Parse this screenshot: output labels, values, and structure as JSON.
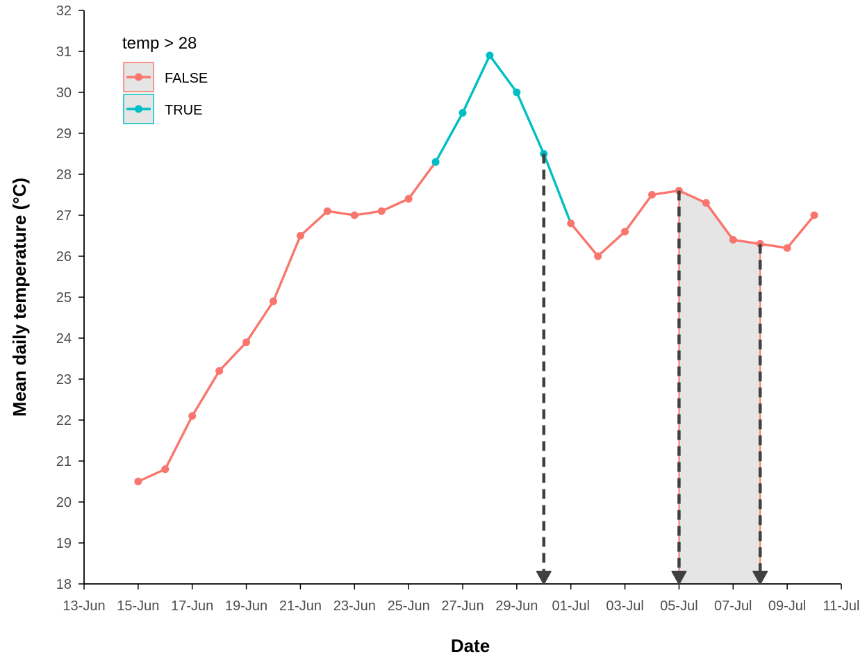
{
  "chart_data": {
    "type": "line",
    "xlabel": "Date",
    "ylabel": "Mean daily temperature (°C)",
    "ylim": [
      18,
      32
    ],
    "xlim": [
      "2021-06-13",
      "2021-07-11"
    ],
    "grid": false,
    "x_ticks": [
      "13-Jun",
      "15-Jun",
      "17-Jun",
      "19-Jun",
      "21-Jun",
      "23-Jun",
      "25-Jun",
      "27-Jun",
      "29-Jun",
      "01-Jul",
      "03-Jul",
      "05-Jul",
      "07-Jul",
      "09-Jul",
      "11-Jul"
    ],
    "y_ticks": [
      18,
      19,
      20,
      21,
      22,
      23,
      24,
      25,
      26,
      27,
      28,
      29,
      30,
      31,
      32
    ],
    "legend": {
      "title": "temp > 28",
      "position": "top-left",
      "entries": [
        {
          "label": "FALSE",
          "color": "#F8766D"
        },
        {
          "label": "TRUE",
          "color": "#00BFC4"
        }
      ]
    },
    "x": [
      "2021-06-15",
      "2021-06-16",
      "2021-06-17",
      "2021-06-18",
      "2021-06-19",
      "2021-06-20",
      "2021-06-21",
      "2021-06-22",
      "2021-06-23",
      "2021-06-24",
      "2021-06-25",
      "2021-06-26",
      "2021-06-27",
      "2021-06-28",
      "2021-06-29",
      "2021-06-30",
      "2021-07-01",
      "2021-07-02",
      "2021-07-03",
      "2021-07-04",
      "2021-07-05",
      "2021-07-06",
      "2021-07-07",
      "2021-07-08",
      "2021-07-09",
      "2021-07-10"
    ],
    "values": [
      20.5,
      20.8,
      22.1,
      23.2,
      23.9,
      24.9,
      26.5,
      27.1,
      27.0,
      27.1,
      27.4,
      28.3,
      29.5,
      30.9,
      30.0,
      28.5,
      26.8,
      26.0,
      26.6,
      27.5,
      27.6,
      27.3,
      26.4,
      26.3,
      26.2,
      27.0
    ],
    "series": [
      {
        "name": "FALSE",
        "color": "#F8766D",
        "x": [
          "2021-06-15",
          "2021-06-16",
          "2021-06-17",
          "2021-06-18",
          "2021-06-19",
          "2021-06-20",
          "2021-06-21",
          "2021-06-22",
          "2021-06-23",
          "2021-06-24",
          "2021-06-25",
          "2021-06-26"
        ],
        "values": [
          20.5,
          20.8,
          22.1,
          23.2,
          23.9,
          24.9,
          26.5,
          27.1,
          27.0,
          27.1,
          27.4,
          28.3
        ]
      },
      {
        "name": "TRUE",
        "color": "#00BFC4",
        "x": [
          "2021-06-26",
          "2021-06-27",
          "2021-06-28",
          "2021-06-29",
          "2021-06-30",
          "2021-07-01"
        ],
        "values": [
          28.3,
          29.5,
          30.9,
          30.0,
          28.5,
          26.8
        ]
      },
      {
        "name": "FALSE",
        "color": "#F8766D",
        "x": [
          "2021-07-01",
          "2021-07-02",
          "2021-07-03",
          "2021-07-04",
          "2021-07-05",
          "2021-07-06",
          "2021-07-07",
          "2021-07-08",
          "2021-07-09",
          "2021-07-10"
        ],
        "values": [
          26.8,
          26.0,
          26.6,
          27.5,
          27.6,
          27.3,
          26.4,
          26.3,
          26.2,
          27.0
        ]
      }
    ],
    "point_colors": {
      "2021-06-26": "#00BFC4",
      "2021-06-27": "#00BFC4",
      "2021-06-28": "#00BFC4",
      "2021-06-29": "#00BFC4",
      "2021-06-30": "#00BFC4"
    },
    "annotations": {
      "vertical_arrows": [
        "2021-06-30",
        "2021-07-05",
        "2021-07-08"
      ],
      "arrow_color": "#404040",
      "shaded_region": {
        "from": "2021-07-05",
        "to": "2021-07-08",
        "fill": "#e5e5e5",
        "edge": "#F8766D"
      }
    }
  }
}
